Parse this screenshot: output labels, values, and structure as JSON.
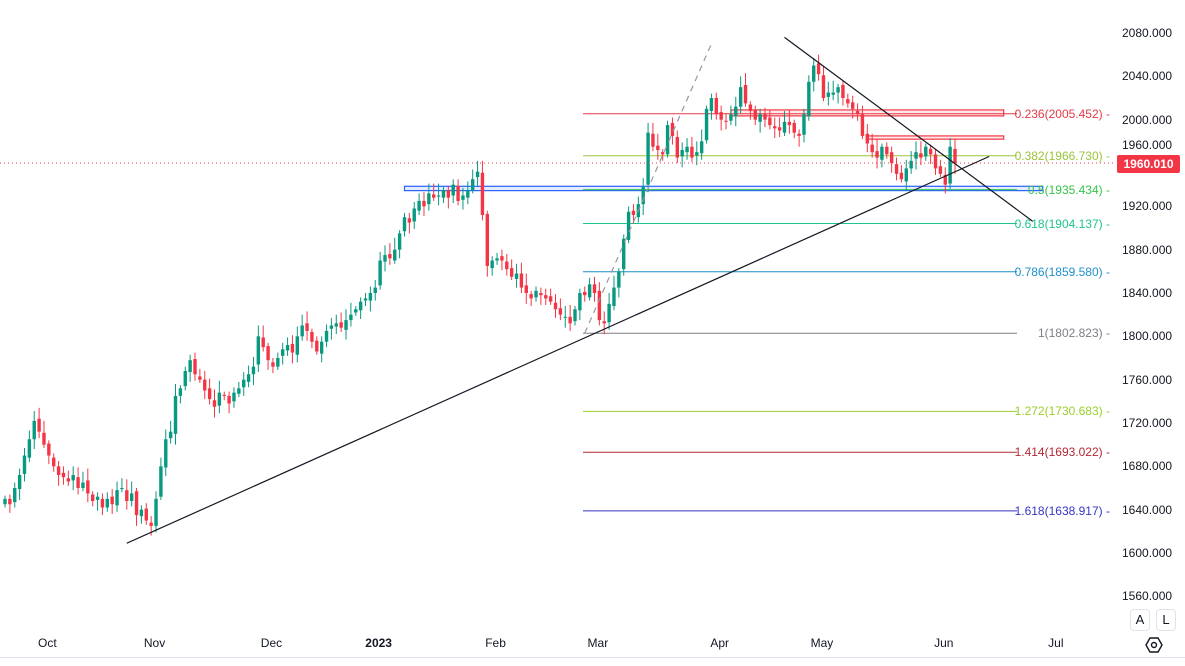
{
  "chart_data": {
    "type": "candlestick",
    "symbol_last_price": "1960.010",
    "ylim": [
      1560,
      2080
    ],
    "y_ticks": [
      "2080.000",
      "2040.000",
      "2000.000",
      "1960.000",
      "1920.000",
      "1880.000",
      "1840.000",
      "1800.000",
      "1760.000",
      "1720.000",
      "1680.000",
      "1640.000",
      "1600.000",
      "1560.000"
    ],
    "x_ticks": [
      {
        "label": "Oct",
        "index": 5,
        "bold": false
      },
      {
        "label": "Nov",
        "index": 27,
        "bold": false
      },
      {
        "label": "Dec",
        "index": 51,
        "bold": false
      },
      {
        "label": "2023",
        "index": 73,
        "bold": true
      },
      {
        "label": "Feb",
        "index": 97,
        "bold": false
      },
      {
        "label": "Mar",
        "index": 118,
        "bold": false
      },
      {
        "label": "Apr",
        "index": 143,
        "bold": false
      },
      {
        "label": "May",
        "index": 164,
        "bold": false
      },
      {
        "label": "Jun",
        "index": 189,
        "bold": false
      },
      {
        "label": "Jul",
        "index": 212,
        "bold": false
      }
    ],
    "closes": [
      1650,
      1645,
      1660,
      1672,
      1690,
      1705,
      1722,
      1712,
      1700,
      1690,
      1680,
      1672,
      1670,
      1666,
      1672,
      1660,
      1665,
      1655,
      1648,
      1652,
      1642,
      1650,
      1645,
      1658,
      1660,
      1648,
      1655,
      1635,
      1640,
      1630,
      1625,
      1650,
      1680,
      1705,
      1712,
      1745,
      1752,
      1768,
      1778,
      1765,
      1760,
      1750,
      1742,
      1735,
      1748,
      1745,
      1738,
      1748,
      1752,
      1760,
      1765,
      1772,
      1800,
      1790,
      1778,
      1772,
      1780,
      1788,
      1792,
      1785,
      1800,
      1810,
      1805,
      1795,
      1786,
      1795,
      1805,
      1810,
      1812,
      1808,
      1815,
      1820,
      1825,
      1832,
      1835,
      1840,
      1845,
      1870,
      1875,
      1872,
      1880,
      1895,
      1910,
      1905,
      1918,
      1925,
      1920,
      1932,
      1928,
      1930,
      1935,
      1928,
      1940,
      1925,
      1930,
      1935,
      1945,
      1952,
      1912,
      1865,
      1870,
      1872,
      1870,
      1862,
      1855,
      1858,
      1845,
      1840,
      1835,
      1842,
      1838,
      1835,
      1832,
      1825,
      1820,
      1818,
      1812,
      1825,
      1840,
      1838,
      1848,
      1840,
      1815,
      1812,
      1830,
      1845,
      1860,
      1890,
      1915,
      1912,
      1922,
      1938,
      1988,
      1975,
      1972,
      1968,
      1995,
      1985,
      1965,
      1972,
      1975,
      1965,
      1970,
      1980,
      2010,
      2020,
      2005,
      2000,
      1998,
      2005,
      2012,
      2030,
      2015,
      2008,
      2000,
      2005,
      2000,
      1995,
      1992,
      1990,
      1998,
      1995,
      1988,
      1985,
      2005,
      2035,
      2050,
      2042,
      2020,
      2025,
      2025,
      2030,
      2020,
      2015,
      2010,
      2005,
      1985,
      1978,
      1970,
      1965,
      1975,
      1968,
      1960,
      1950,
      1945,
      1955,
      1962,
      1970,
      1965,
      1975,
      1968,
      1955,
      1950,
      1940,
      1975,
      1960
    ],
    "fib_levels": [
      {
        "ratio": "0.236",
        "price": 2005.452,
        "label": "0.236(2005.452)",
        "color": "#e53945"
      },
      {
        "ratio": "0.382",
        "price": 1966.73,
        "label": "0.382(1966.730)",
        "color": "#9bc43a"
      },
      {
        "ratio": "0.5",
        "price": 1935.434,
        "label": "0.5(1935.434)",
        "color": "#33c447"
      },
      {
        "ratio": "0.618",
        "price": 1904.137,
        "label": "0.618(1904.137)",
        "color": "#1fc391"
      },
      {
        "ratio": "0.786",
        "price": 1859.58,
        "label": "0.786(1859.580)",
        "color": "#1e8fc8"
      },
      {
        "ratio": "1",
        "price": 1802.823,
        "label": "1(1802.823)",
        "color": "#7e7e86"
      },
      {
        "ratio": "1.272",
        "price": 1730.683,
        "label": "1.272(1730.683)",
        "color": "#9bcf2b"
      },
      {
        "ratio": "1.414",
        "price": 1693.022,
        "label": "1.414(1693.022)",
        "color": "#b22833"
      },
      {
        "ratio": "1.618",
        "price": 1638.917,
        "label": "1.618(1638.917)",
        "color": "#3535c8"
      }
    ],
    "trendlines": [
      {
        "name": "support",
        "from": [
          25,
          1609
        ],
        "to": [
          202,
          1966
        ]
      },
      {
        "name": "resistance",
        "from": [
          160,
          2076
        ],
        "to": [
          211,
          1906
        ]
      },
      {
        "name": "dashed-projection",
        "from": [
          119,
          1803
        ],
        "to": [
          145,
          2070
        ]
      }
    ],
    "zones": [
      {
        "name": "blue-zone",
        "from": 82,
        "to": 213,
        "top": 1938.5,
        "bottom": 1934.5,
        "color": "#2962ff"
      },
      {
        "name": "red-zone-upper",
        "from": 149,
        "to": 205,
        "top": 2009,
        "bottom": 2003.5,
        "color": "#f23645"
      },
      {
        "name": "red-zone-lower",
        "from": 177,
        "to": 205,
        "top": 1985,
        "bottom": 1982,
        "color": "#f23645"
      }
    ],
    "colors": {
      "up": "#089981",
      "down": "#f23645",
      "price_line": "#f23645"
    }
  },
  "controls": {
    "auto_label": "A",
    "log_label": "L"
  }
}
